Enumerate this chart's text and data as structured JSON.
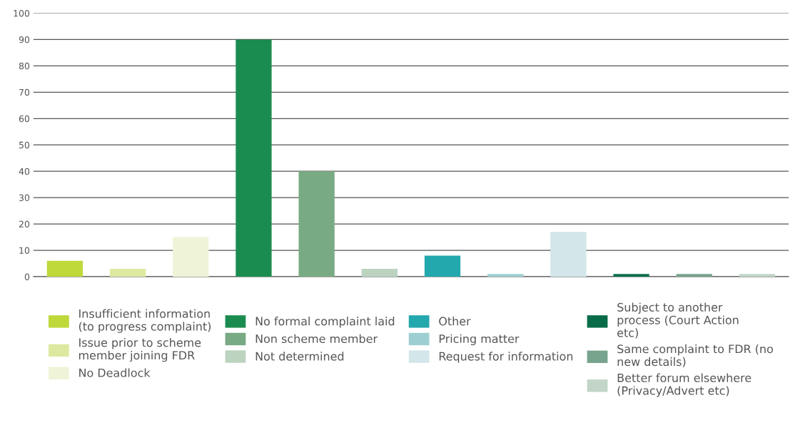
{
  "chart_data": {
    "type": "bar",
    "categories": [
      null,
      null,
      null,
      null,
      null,
      null,
      null,
      null,
      null,
      null,
      null,
      null
    ],
    "series": [
      {
        "name": "Insufficient information (to progress complaint)",
        "color": "#bfd83a",
        "values": [
          6,
          null,
          null,
          null,
          null,
          null,
          null,
          null,
          null,
          null,
          null,
          null
        ]
      },
      {
        "name": "Issue prior to scheme member joining FDR",
        "color": "#dde9a0",
        "values": [
          null,
          3,
          null,
          null,
          null,
          null,
          null,
          null,
          null,
          null,
          null,
          null
        ]
      },
      {
        "name": "No Deadlock",
        "color": "#eff4d8",
        "values": [
          null,
          null,
          15,
          null,
          null,
          null,
          null,
          null,
          null,
          null,
          null,
          null
        ]
      },
      {
        "name": "No formal complaint laid",
        "color": "#1b8c4f",
        "values": [
          null,
          null,
          null,
          90,
          null,
          null,
          null,
          null,
          null,
          null,
          null,
          null
        ]
      },
      {
        "name": "Non scheme member",
        "color": "#78aa83",
        "values": [
          null,
          null,
          null,
          null,
          40,
          null,
          null,
          null,
          null,
          null,
          null,
          null
        ]
      },
      {
        "name": "Not determined",
        "color": "#bbd3bf",
        "values": [
          null,
          null,
          null,
          null,
          null,
          3,
          null,
          null,
          null,
          null,
          null,
          null
        ]
      },
      {
        "name": "Other",
        "color": "#23a8ad",
        "values": [
          null,
          null,
          null,
          null,
          null,
          null,
          8,
          null,
          null,
          null,
          null,
          null
        ]
      },
      {
        "name": "Pricing matter",
        "color": "#9dcfd2",
        "values": [
          null,
          null,
          null,
          null,
          null,
          null,
          null,
          1,
          null,
          null,
          null,
          null
        ]
      },
      {
        "name": "Request for information",
        "color": "#d3e6e9",
        "values": [
          null,
          null,
          null,
          null,
          null,
          null,
          null,
          null,
          17,
          null,
          null,
          null
        ]
      },
      {
        "name": "Subject to another process (Court Action etc)",
        "color": "#086c48",
        "values": [
          null,
          null,
          null,
          null,
          null,
          null,
          null,
          null,
          null,
          1,
          null,
          null
        ]
      },
      {
        "name": "Same complaint to FDR (no new details)",
        "color": "#78a38c",
        "values": [
          null,
          null,
          null,
          null,
          null,
          null,
          null,
          null,
          null,
          null,
          1,
          null
        ]
      },
      {
        "name": "Better forum elsewhere (Privacy/Advert etc)",
        "color": "#c2d5c8",
        "values": [
          null,
          null,
          null,
          null,
          null,
          null,
          null,
          null,
          null,
          null,
          null,
          1
        ]
      }
    ],
    "ylim": [
      0,
      100
    ],
    "yticks": [
      0,
      10,
      20,
      30,
      40,
      50,
      60,
      70,
      80,
      90,
      100
    ],
    "grid": "y",
    "legend": "bottom"
  }
}
